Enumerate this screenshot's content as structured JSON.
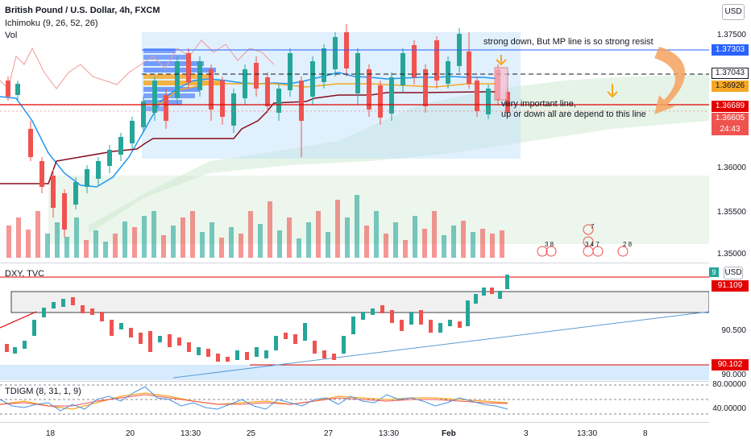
{
  "header": {
    "title": "British Pound / U.S. Dollar, 4h, FXCM",
    "indicator1": "Ichimoku (9, 26, 52, 26)",
    "indicator2": "Vol",
    "currency_btn": "USD"
  },
  "main_axis": {
    "ticks": [
      "1.37500",
      "1.36000",
      "1.35500",
      "1.35000"
    ],
    "labels": [
      {
        "text": "1.37303",
        "color": "#2962ff"
      },
      {
        "text": "1.37043",
        "color": "#131722"
      },
      {
        "text": "1.36926",
        "color": "#f6a723"
      },
      {
        "text": "1.36689",
        "color": "#e30000"
      },
      {
        "text": "1.36605",
        "color": "#ef5350"
      },
      {
        "text": "24:43",
        "color": "#ef5350"
      }
    ]
  },
  "annotations": {
    "note1": "strong down, But MP line is so strong resist",
    "note2_line1": "very important line,",
    "note2_line2": "up or down all are depend to this line",
    "event_digits": [
      "3 8",
      "3 4 7",
      "2 8",
      "7"
    ]
  },
  "dxy": {
    "title": "DXY, TVC",
    "currency_btn": "USD",
    "ticks": [
      "90.500",
      "90.000"
    ],
    "labels": [
      {
        "text": "9",
        "color": "#26a69a"
      },
      {
        "text": "91.109",
        "color": "#e30000"
      },
      {
        "text": "90.102",
        "color": "#e30000"
      }
    ]
  },
  "tdigm": {
    "title": "TDIGM (8, 31, 1, 9)",
    "ticks": [
      "80.00000",
      "40.00000"
    ]
  },
  "x_axis": [
    "18",
    "20",
    "13:30",
    "25",
    "27",
    "13:30",
    "Feb",
    "3",
    "13:30",
    "8"
  ],
  "colors": {
    "up": "#26a69a",
    "down": "#ef5350",
    "kijun": "#880e1e",
    "tenkan": "#2196f3",
    "poc": "#f6a723"
  }
}
